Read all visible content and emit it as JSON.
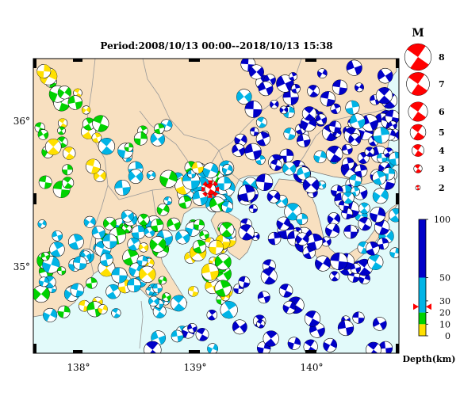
{
  "map": {
    "title": "Period:2008/10/13 00:00--2018/10/13 15:38",
    "x_ticks": [
      "138°",
      "139°",
      "140°"
    ],
    "y_ticks": [
      "36°",
      "35°"
    ],
    "lon_range": [
      137.7,
      140.8
    ],
    "lat_range": [
      34.35,
      36.45
    ],
    "colors": {
      "land": "#f8e0c0",
      "sea": "#e2fafa",
      "border": "#999999",
      "depth_0_10": "#ffe000",
      "depth_10_20": "#00d200",
      "depth_20_50": "#00b4e6",
      "depth_50_100": "#0000c8",
      "target": "#ff0000"
    },
    "target_event": {
      "lon": 139.2,
      "lat": 35.52,
      "depth_km": 25,
      "mag": 4.7
    }
  },
  "magnitude_legend": {
    "title": "M",
    "entries": [
      {
        "label": "8",
        "mag": 8
      },
      {
        "label": "7",
        "mag": 7
      },
      {
        "label": "6",
        "mag": 6
      },
      {
        "label": "5",
        "mag": 5
      },
      {
        "label": "4",
        "mag": 4
      },
      {
        "label": "3",
        "mag": 3
      },
      {
        "label": "2",
        "mag": 2
      }
    ]
  },
  "depth_colorbar": {
    "title": "Depth(km)",
    "max": 100,
    "ticks": [
      {
        "label": "100",
        "value": 100
      },
      {
        "label": "50",
        "value": 50
      },
      {
        "label": "30",
        "value": 30
      },
      {
        "label": "20",
        "value": 20
      },
      {
        "label": "10",
        "value": 10
      },
      {
        "label": "0",
        "value": 0
      }
    ],
    "marker_depth_km": 25
  }
}
